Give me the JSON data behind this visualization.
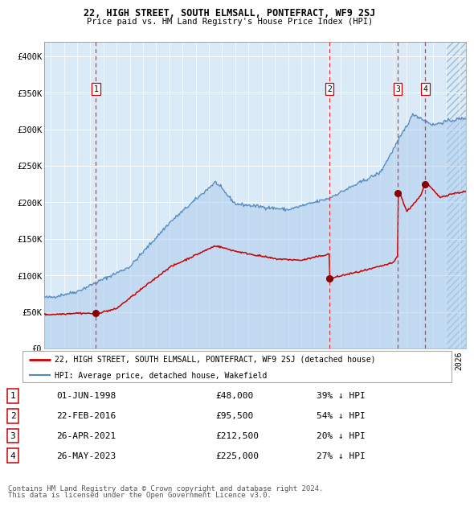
{
  "title1": "22, HIGH STREET, SOUTH ELMSALL, PONTEFRACT, WF9 2SJ",
  "title2": "Price paid vs. HM Land Registry's House Price Index (HPI)",
  "xlim": [
    1994.5,
    2026.5
  ],
  "ylim": [
    0,
    420000
  ],
  "yticks": [
    0,
    50000,
    100000,
    150000,
    200000,
    250000,
    300000,
    350000,
    400000
  ],
  "ytick_labels": [
    "£0",
    "£50K",
    "£100K",
    "£150K",
    "£200K",
    "£250K",
    "£300K",
    "£350K",
    "£400K"
  ],
  "bg_color": "#daeaf7",
  "grid_color": "#ffffff",
  "sale_dates": [
    1998.42,
    2016.14,
    2021.32,
    2023.4
  ],
  "sale_prices": [
    48000,
    95500,
    212500,
    225000
  ],
  "sale_labels": [
    "1",
    "2",
    "3",
    "4"
  ],
  "sale_hpi_pct": [
    "39% ↓ HPI",
    "54% ↓ HPI",
    "20% ↓ HPI",
    "27% ↓ HPI"
  ],
  "sale_date_labels": [
    "01-JUN-1998",
    "22-FEB-2016",
    "26-APR-2021",
    "26-MAY-2023"
  ],
  "red_line_color": "#cc0000",
  "blue_line_color": "#5588bb",
  "blue_fill_color": "#aaccee",
  "marker_color": "#880000",
  "dashed_line_color": "#ee3333",
  "legend1": "22, HIGH STREET, SOUTH ELMSALL, PONTEFRACT, WF9 2SJ (detached house)",
  "legend2": "HPI: Average price, detached house, Wakefield",
  "footnote1": "Contains HM Land Registry data © Crown copyright and database right 2024.",
  "footnote2": "This data is licensed under the Open Government Licence v3.0.",
  "hatch_start": 2025.0
}
